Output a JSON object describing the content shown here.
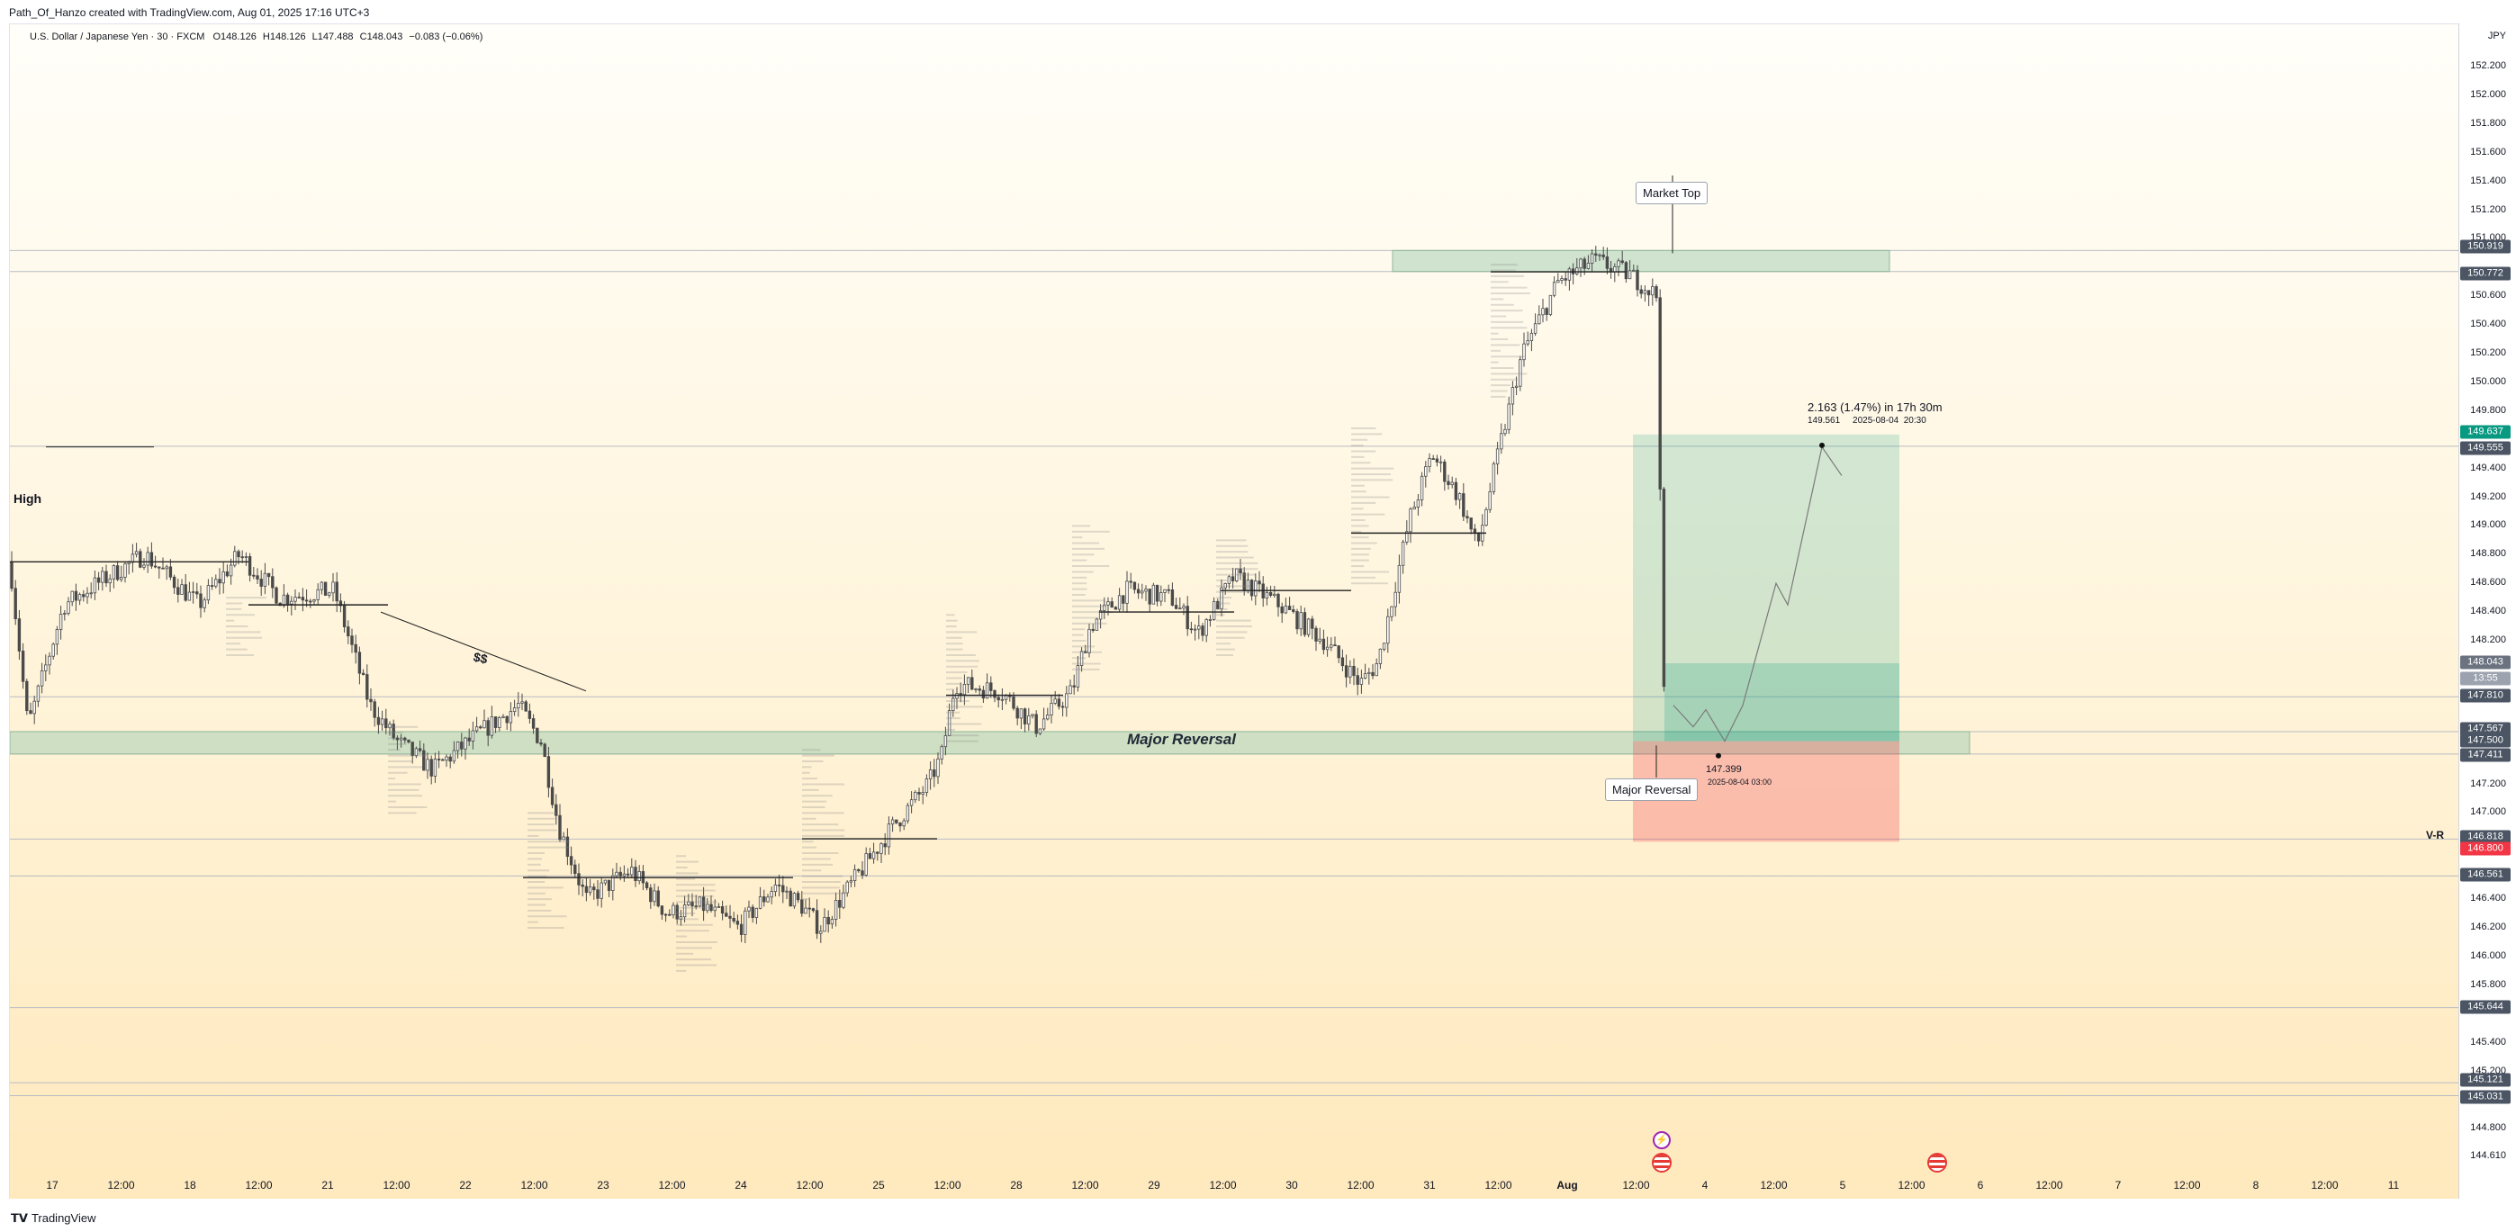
{
  "header": {
    "attribution": "Path_Of_Hanzo created with TradingView.com, Aug 01, 2025 17:16 UTC+3"
  },
  "legend": {
    "symbol": "U.S. Dollar / Japanese Yen · 30 · FXCM",
    "open": "O148.126",
    "high": "H148.126",
    "low": "L147.488",
    "close": "C148.043",
    "change": "−0.083 (−0.06%)"
  },
  "price_axis": {
    "unit": "JPY",
    "ticks": [
      "152.200",
      "152.000",
      "151.800",
      "151.600",
      "151.400",
      "151.200",
      "151.000",
      "150.600",
      "150.400",
      "150.200",
      "150.000",
      "149.800",
      "149.400",
      "149.200",
      "149.000",
      "148.800",
      "148.600",
      "148.400",
      "148.200",
      "147.200",
      "147.000",
      "146.400",
      "146.200",
      "146.000",
      "145.800",
      "145.400",
      "145.200",
      "144.800",
      "144.610"
    ],
    "labels": [
      {
        "text": "150.919",
        "color": "#4b5563"
      },
      {
        "text": "150.772",
        "color": "#4b5563"
      },
      {
        "text": "149.637",
        "color": "#089981"
      },
      {
        "text": "149.555",
        "color": "#4b5563"
      },
      {
        "text": "148.043",
        "color": "#6b7280"
      },
      {
        "text": "13:55",
        "color": "#9ca3af"
      },
      {
        "text": "147.810",
        "color": "#4b5563"
      },
      {
        "text": "147.567",
        "color": "#4b5563"
      },
      {
        "text": "147.500",
        "color": "#4b5563"
      },
      {
        "text": "147.411",
        "color": "#4b5563"
      },
      {
        "text": "146.818",
        "color": "#4b5563"
      },
      {
        "text": "146.800",
        "color": "#f23645"
      },
      {
        "text": "146.561",
        "color": "#4b5563"
      },
      {
        "text": "145.644",
        "color": "#4b5563"
      },
      {
        "text": "145.121",
        "color": "#4b5563"
      },
      {
        "text": "145.031",
        "color": "#4b5563"
      }
    ]
  },
  "time_axis": [
    "17",
    "12:00",
    "18",
    "12:00",
    "21",
    "12:00",
    "22",
    "12:00",
    "23",
    "12:00",
    "24",
    "12:00",
    "25",
    "12:00",
    "28",
    "12:00",
    "29",
    "12:00",
    "30",
    "12:00",
    "31",
    "12:00",
    "Aug",
    "12:00",
    "4",
    "12:00",
    "5",
    "12:00",
    "6",
    "12:00",
    "7",
    "12:00",
    "8",
    "12:00",
    "11"
  ],
  "annotations": {
    "market_top": "Market Top",
    "high": "High",
    "dollar_signs": "$$",
    "major_reversal_zone": "Major Reversal",
    "major_reversal_callout": "Major Reversal",
    "projection_main": "2.163 (1.47%) in 17h 30m",
    "projection_sub": "149.561     2025-08-04  20:30",
    "low_point": "147.399",
    "low_point_date": "2025-08-04 03:00",
    "vr_label": "V-R"
  },
  "colors": {
    "zone": "#a8cfb4",
    "profit": "#089981",
    "loss": "#f23645",
    "candle": "#4a4a4a"
  },
  "icons": [
    "bolt-icon",
    "us-flag-icon",
    "us-flag-icon"
  ],
  "footer": {
    "brand": "TradingView"
  }
}
